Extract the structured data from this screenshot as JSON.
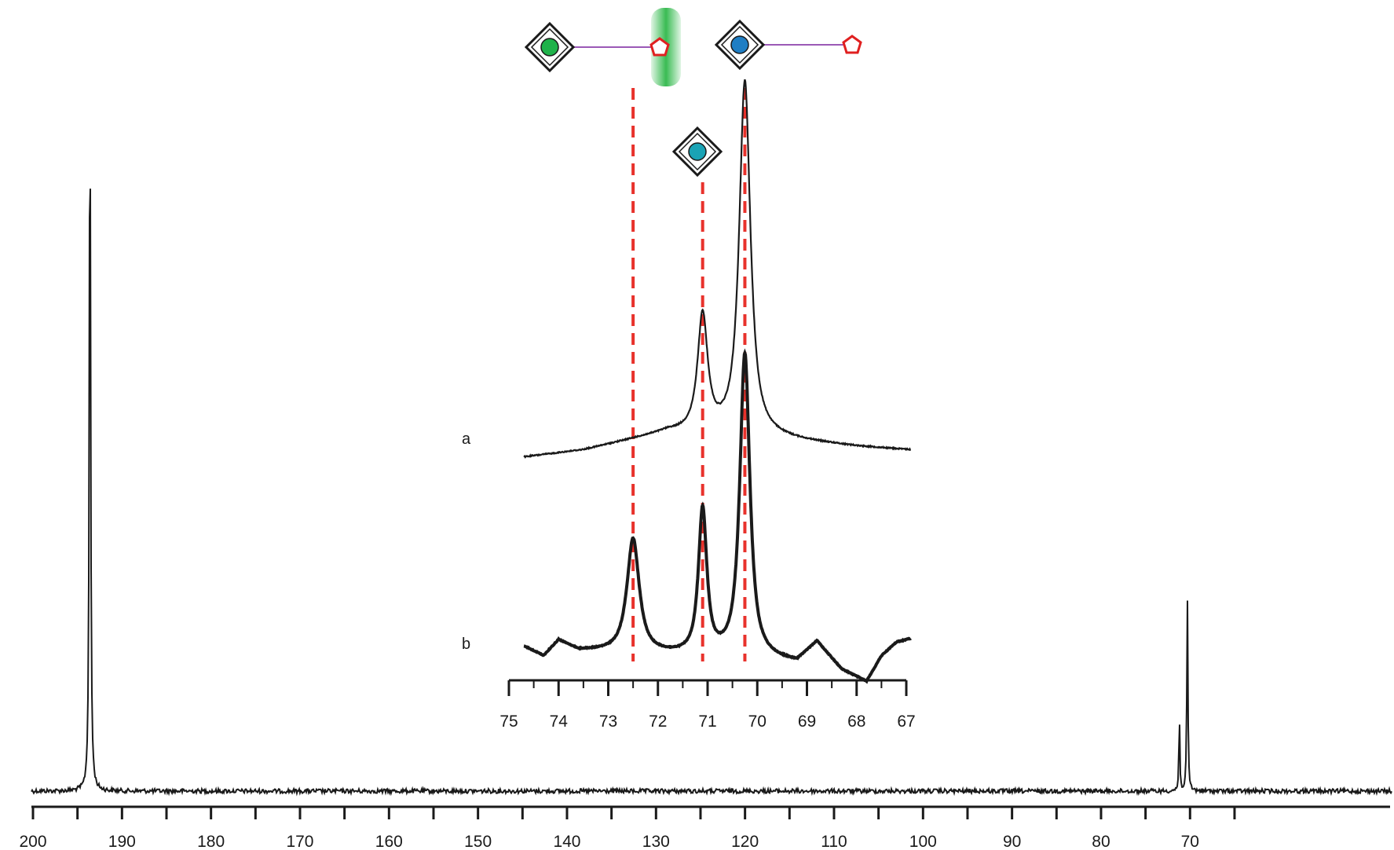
{
  "chart_data": [
    {
      "type": "line",
      "name_role": "full-spectrum",
      "xlim": [
        200,
        65
      ],
      "xticks_labeled": [
        200,
        190,
        180,
        170,
        160,
        150,
        140,
        130,
        120,
        110,
        100,
        90,
        80,
        70
      ],
      "tick_labels": [
        "200",
        "190",
        "180",
        "170",
        "160",
        "150",
        "140",
        "130",
        "120",
        "110",
        "100",
        "90",
        "80",
        "70"
      ],
      "minor_tick_step": 5,
      "peaks": [
        {
          "x": 193.6,
          "height": 0.97,
          "width": 0.22
        },
        {
          "x": 71.2,
          "height": 0.1,
          "width": 0.16
        },
        {
          "x": 70.3,
          "height": 0.25,
          "width": 0.18
        }
      ],
      "grid": false
    },
    {
      "type": "line",
      "name_role": "inset",
      "xlim": [
        75,
        67
      ],
      "tick_labels": [
        "75",
        "74",
        "73",
        "72",
        "71",
        "70",
        "69",
        "68",
        "67"
      ],
      "xticks": [
        75,
        74,
        73,
        72,
        71,
        70,
        69,
        68,
        67
      ],
      "series": [
        {
          "name": "a",
          "peaks": [
            {
              "x": 71.1,
              "height": 0.33,
              "width": 0.18
            },
            {
              "x": 70.25,
              "height": 1.0,
              "width": 0.2
            }
          ],
          "baseline_points": [
            [
              74.7,
              0.0
            ],
            [
              73.5,
              0.02
            ],
            [
              72.5,
              0.05
            ],
            [
              71.8,
              0.07
            ],
            [
              69.5,
              0.05
            ],
            [
              68.0,
              0.03
            ],
            [
              66.9,
              0.02
            ]
          ]
        },
        {
          "name": "b",
          "peaks": [
            {
              "x": 72.5,
              "height": 0.58,
              "width": 0.22
            },
            {
              "x": 71.1,
              "height": 0.74,
              "width": 0.15
            },
            {
              "x": 70.25,
              "height": 1.55,
              "width": 0.18
            }
          ],
          "baseline_points": [
            [
              74.7,
              0.0
            ],
            [
              74.3,
              -0.05
            ],
            [
              74.0,
              0.03
            ],
            [
              73.6,
              -0.02
            ],
            [
              69.2,
              -0.08
            ],
            [
              68.8,
              0.02
            ],
            [
              68.3,
              -0.12
            ],
            [
              67.8,
              -0.18
            ],
            [
              67.5,
              -0.05
            ],
            [
              67.2,
              0.02
            ],
            [
              66.9,
              0.04
            ]
          ]
        }
      ],
      "reference_lines": [
        72.5,
        71.1,
        70.25
      ],
      "grid": false
    }
  ],
  "glycan_symbols": {
    "top_left": {
      "center_color": "#1fb24a",
      "terminal": "pentagon",
      "highlight": "#2fb84a"
    },
    "top_right": {
      "center_color": "#1f7ec4",
      "terminal": "pentagon"
    },
    "middle": {
      "center_color": "#1aa3b5"
    },
    "line_color": "#9b59b6",
    "pentagon_color": "#e02020"
  },
  "colors": {
    "trace": "#1a1a1a",
    "reference_line": "#e8322c"
  }
}
